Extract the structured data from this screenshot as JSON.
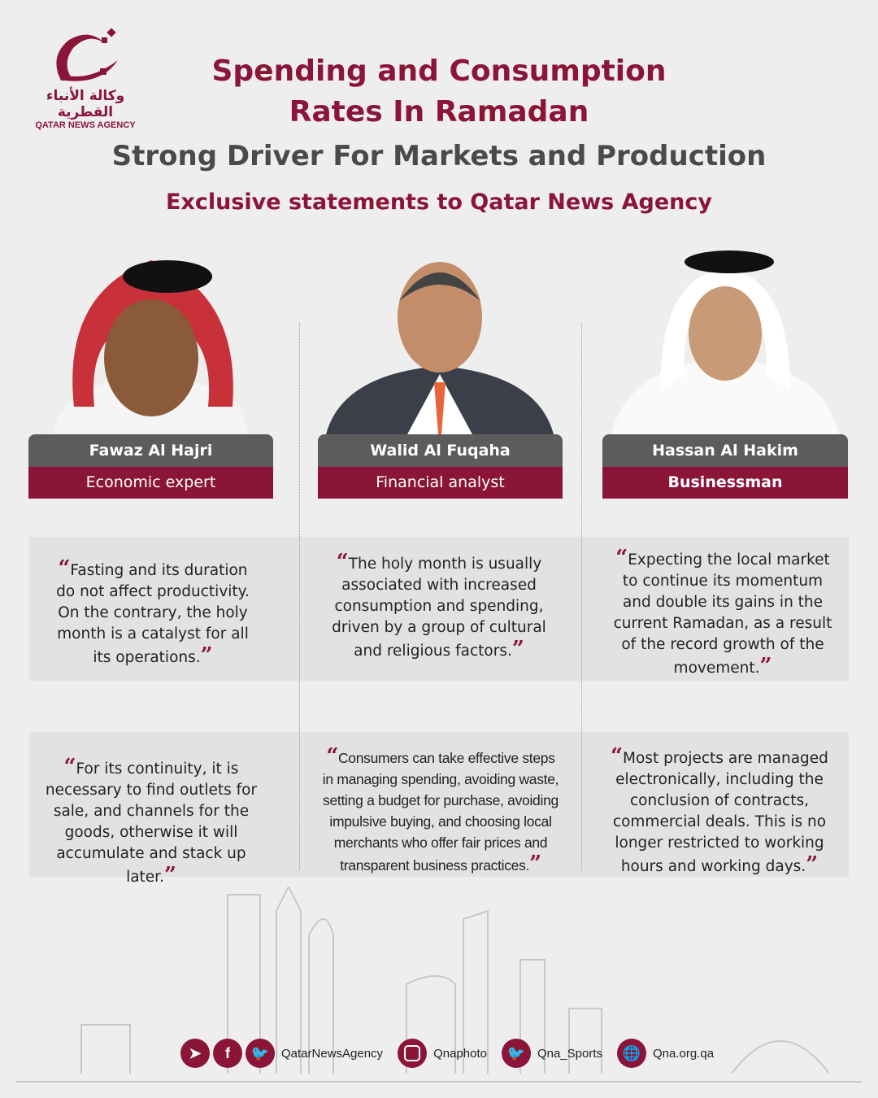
{
  "logo": {
    "arabic": "وكالة الأنباء القطرية",
    "english": "QATAR NEWS AGENCY"
  },
  "header": {
    "title_line1": "Spending and Consumption",
    "title_line2": "Rates In Ramadan",
    "subtitle": "Strong Driver For Markets and Production",
    "tagline": "Exclusive statements to Qatar News Agency"
  },
  "colors": {
    "accent": "#8a1538",
    "name_bar": "#5c5c5c",
    "background": "#eeeeee",
    "quote_box": "#e2e2e2"
  },
  "people": [
    {
      "name": "Fawaz Al Hajri",
      "role": "Economic expert"
    },
    {
      "name": "Walid Al Fuqaha",
      "role": "Financial analyst"
    },
    {
      "name": "Hassan Al Hakim",
      "role": "Businessman"
    }
  ],
  "quotes_row1": [
    "Fasting and its duration do not affect productivity. On the contrary, the holy month is a catalyst for all its operations.",
    "The holy month is usually associated with increased consumption and spending, driven by a group of cultural and religious factors.",
    "Expecting the local market to continue its momentum and double its gains in the current Ramadan, as a result of the record growth of the movement."
  ],
  "quotes_row2": [
    "For its continuity, it is necessary to find outlets for sale, and channels for the goods, otherwise it will accumulate and stack up later.",
    "Consumers can take effective steps in managing spending, avoiding waste, setting a budget for purchase, avoiding impulsive buying, and choosing local merchants who offer fair prices and transparent business practices.",
    "Most projects are managed electronically, including the conclusion of contracts, commercial deals. This is no longer restricted to working hours and working days."
  ],
  "quote_marks": {
    "open": "“",
    "close": "”"
  },
  "footer": {
    "social_handle": "QatarNewsAgency",
    "instagram": "Qnaphoto",
    "twitter_sports": "Qna_Sports",
    "website": "Qna.org.qa",
    "icons": [
      "telegram-icon",
      "facebook-icon",
      "twitter-icon",
      "instagram-icon",
      "twitter-icon",
      "globe-icon"
    ]
  }
}
